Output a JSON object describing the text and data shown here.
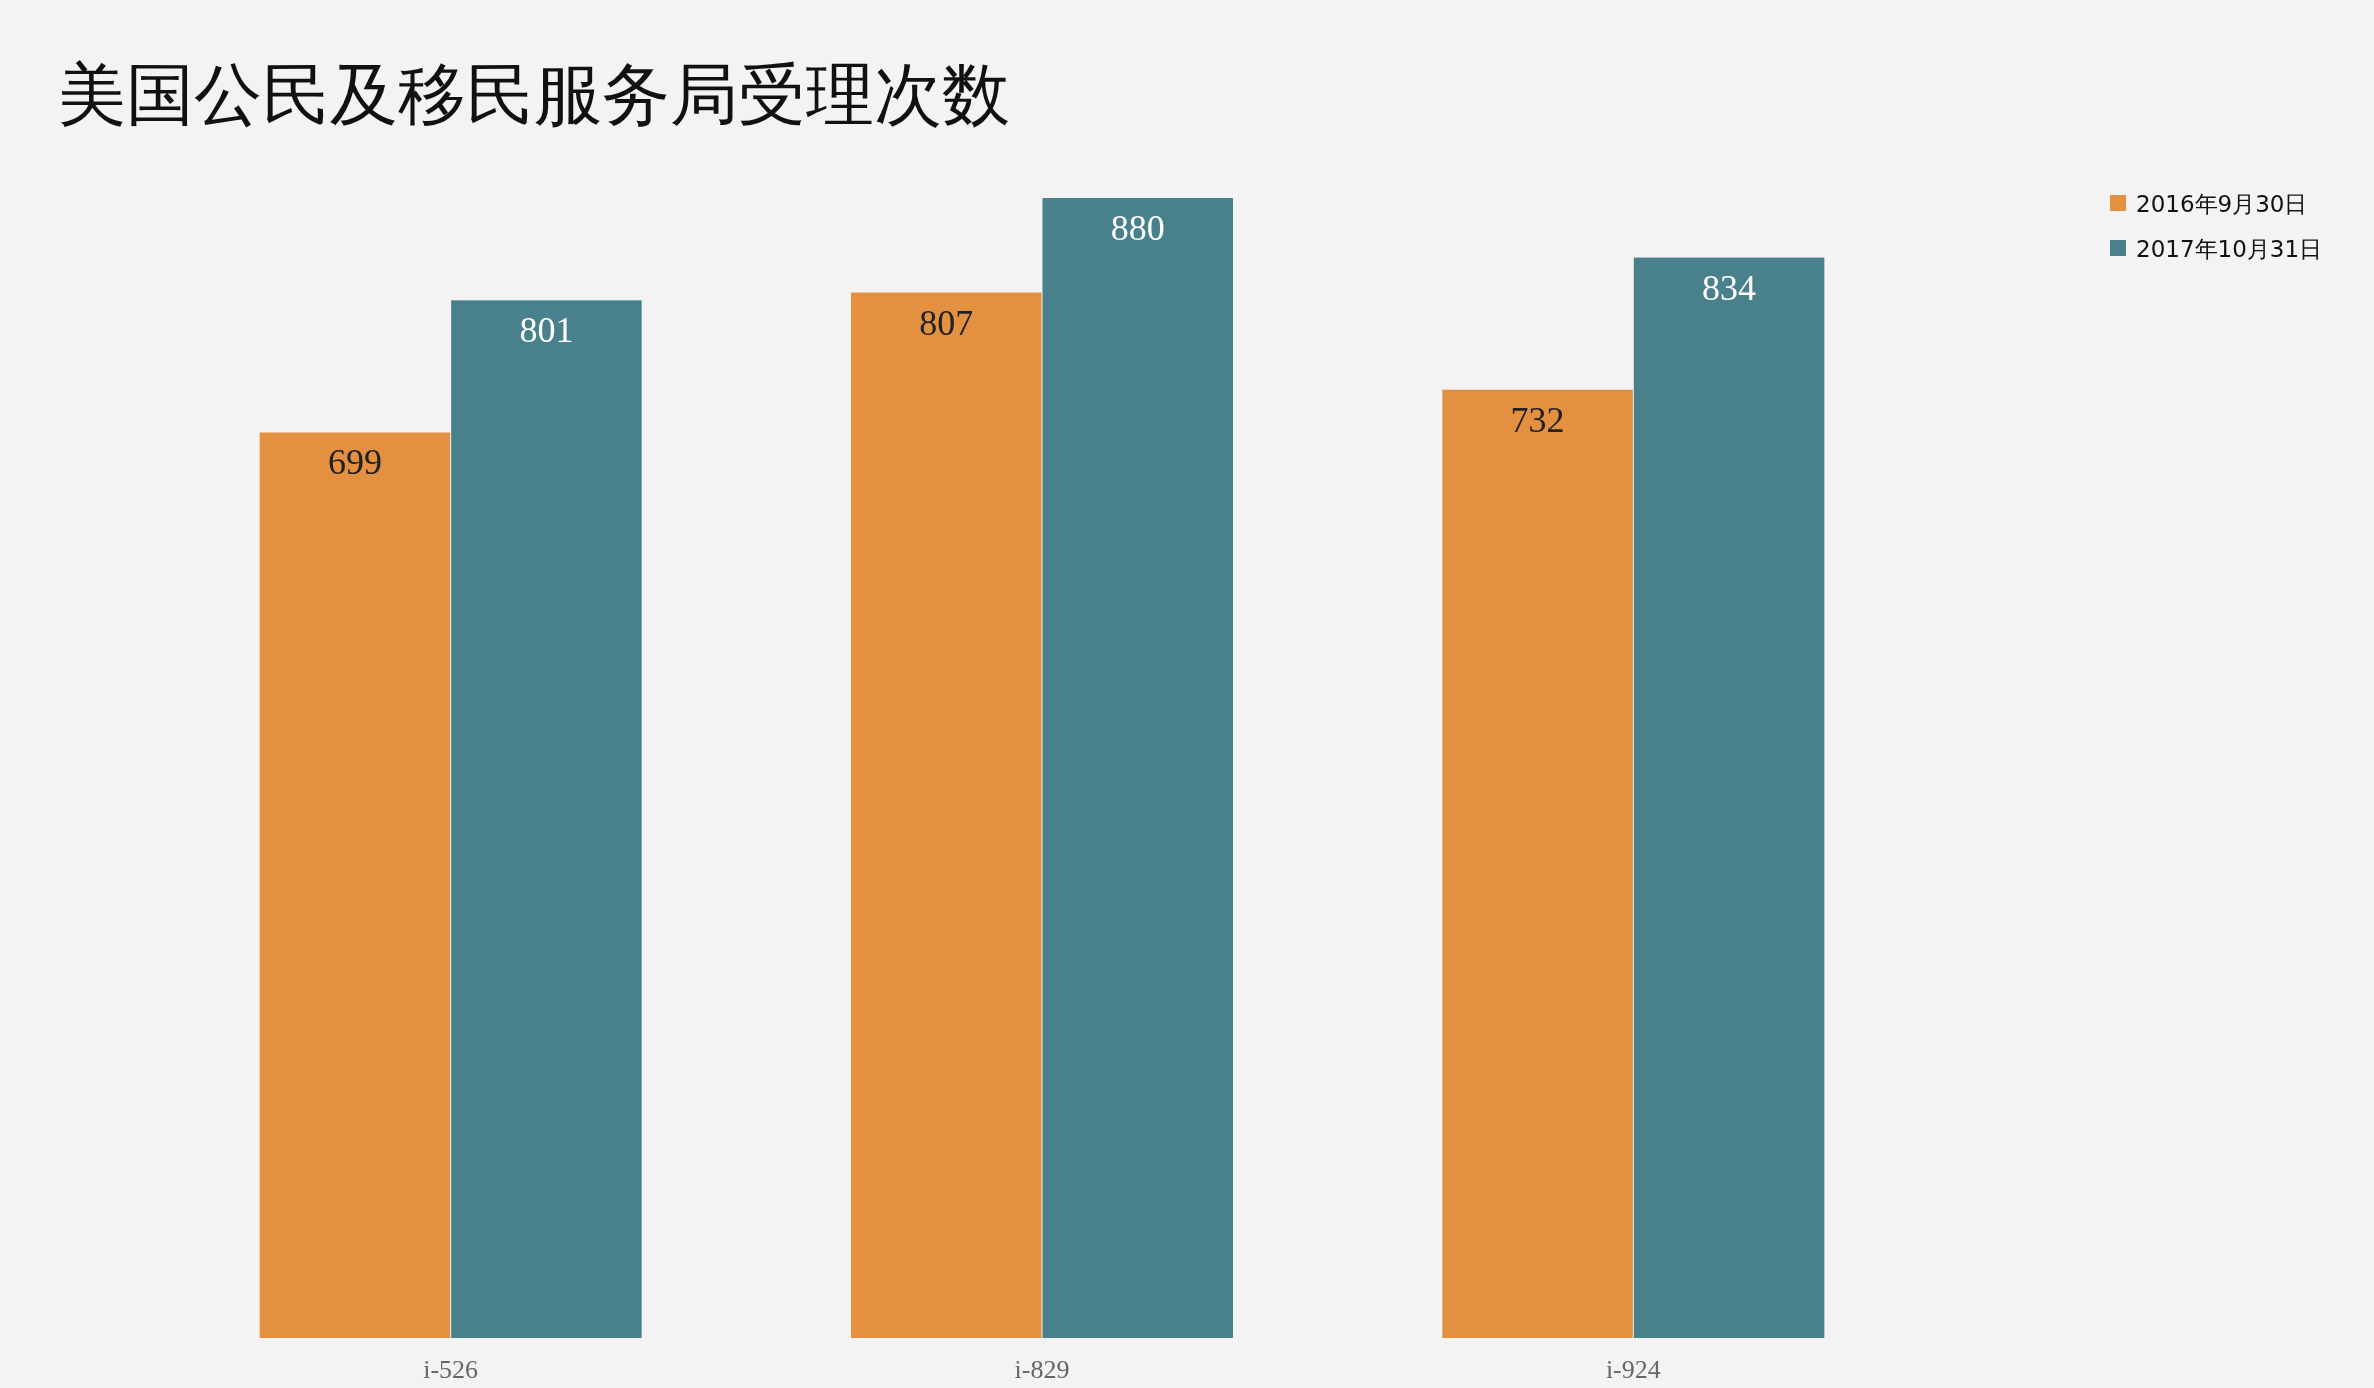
{
  "chart_data": {
    "type": "bar",
    "title": "美国公民及移民服务局受理次数",
    "categories": [
      "i-526",
      "i-829",
      "i-924"
    ],
    "series": [
      {
        "name": "2016年9月30日",
        "color": "#e39041",
        "values": [
          699,
          807,
          732
        ]
      },
      {
        "name": "2017年10月31日",
        "color": "#48818c",
        "values": [
          801,
          880,
          834
        ]
      }
    ],
    "data_labels": true,
    "legend": "top right",
    "grid": false
  }
}
